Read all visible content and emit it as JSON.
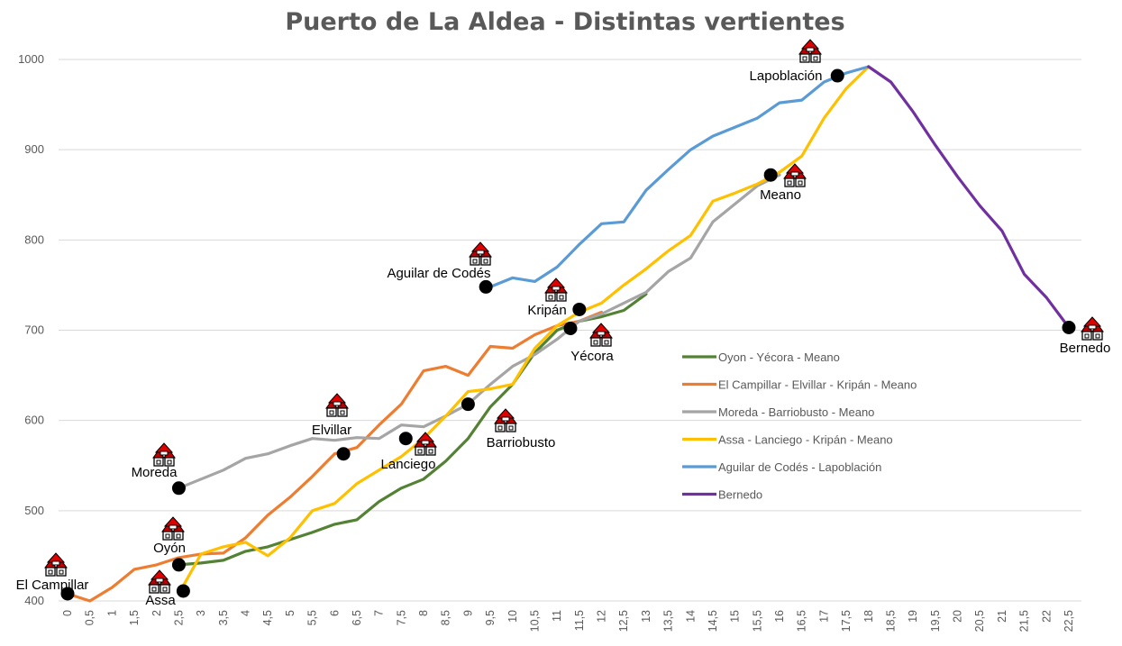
{
  "chart_data": {
    "type": "line",
    "title": "Puerto de La Aldea - Distintas vertientes",
    "xlabel": "",
    "ylabel": "",
    "xlim": [
      0,
      22.5
    ],
    "ylim": [
      400,
      1000
    ],
    "y_ticks": [
      "400",
      "500",
      "600",
      "700",
      "800",
      "900",
      "1000"
    ],
    "x_ticks": [
      "0",
      "0,5",
      "1",
      "1,5",
      "2",
      "2,5",
      "3",
      "3,5",
      "4",
      "4,5",
      "5",
      "5,5",
      "6",
      "6,5",
      "7",
      "7,5",
      "8",
      "8,5",
      "9",
      "9,5",
      "10",
      "10,5",
      "11",
      "11,5",
      "12",
      "12,5",
      "13",
      "13,5",
      "14",
      "14,5",
      "15",
      "15,5",
      "16",
      "16,5",
      "17",
      "17,5",
      "18",
      "18,5",
      "19",
      "19,5",
      "20",
      "20,5",
      "21",
      "21,5",
      "22",
      "22,5"
    ],
    "grid": "horizontal",
    "legend_position": "right",
    "series": [
      {
        "name": "Oyon - Yécora - Meano",
        "color": "#548235",
        "x": [
          2.5,
          3,
          3.5,
          4,
          4.5,
          5,
          5.5,
          6,
          6.5,
          7,
          7.5,
          8,
          8.5,
          9,
          9.5,
          10,
          10.5,
          11,
          11.5,
          12,
          12.5,
          13
        ],
        "y": [
          440,
          442,
          445,
          455,
          460,
          468,
          476,
          485,
          490,
          510,
          525,
          535,
          555,
          580,
          615,
          640,
          675,
          700,
          710,
          715,
          722,
          740
        ]
      },
      {
        "name": "El Campillar - Elvillar - Kripán - Meano",
        "color": "#ED7D31",
        "x": [
          0,
          0.5,
          1,
          1.5,
          2,
          2.5,
          3,
          3.5,
          4,
          4.5,
          5,
          5.5,
          6,
          6.5,
          7,
          7.5,
          8,
          8.5,
          9,
          9.5,
          10,
          10.5,
          11,
          11.5,
          12
        ],
        "y": [
          408,
          400,
          415,
          435,
          440,
          448,
          452,
          453,
          470,
          495,
          515,
          538,
          563,
          570,
          595,
          618,
          655,
          660,
          650,
          682,
          680,
          695,
          705,
          710,
          720
        ]
      },
      {
        "name": "Moreda - Barriobusto - Meano",
        "color": "#A5A5A5",
        "x": [
          2.5,
          3,
          3.5,
          4,
          4.5,
          5,
          5.5,
          6,
          6.5,
          7,
          7.5,
          8,
          8.5,
          9,
          9.5,
          10,
          10.5,
          11,
          11.5,
          12,
          12.5,
          13,
          13.5,
          14,
          14.5,
          15,
          15.5,
          16
        ],
        "y": [
          525,
          535,
          545,
          558,
          563,
          572,
          580,
          578,
          581,
          580,
          595,
          593,
          605,
          618,
          640,
          660,
          673,
          690,
          710,
          718,
          730,
          742,
          765,
          780,
          820,
          840,
          860,
          872
        ]
      },
      {
        "name": "Assa - Lanciego - Kripán - Meano",
        "color": "#FFC000",
        "x": [
          2.5,
          3,
          3.5,
          4,
          4.5,
          5,
          5.5,
          6,
          6.5,
          7,
          7.5,
          8,
          8.5,
          9,
          9.5,
          10,
          10.5,
          11,
          11.5,
          12,
          12.5,
          13,
          13.5,
          14,
          14.5,
          15,
          15.5,
          16,
          16.5,
          17,
          17.5,
          18
        ],
        "y": [
          408,
          452,
          460,
          465,
          450,
          470,
          500,
          508,
          530,
          545,
          560,
          580,
          605,
          632,
          635,
          640,
          680,
          705,
          720,
          730,
          750,
          768,
          788,
          805,
          843,
          852,
          862,
          875,
          893,
          935,
          968,
          992
        ]
      },
      {
        "name": "Aguilar de Codés - Lapoblación",
        "color": "#5B9BD5",
        "x": [
          9.5,
          10,
          10.5,
          11,
          11.5,
          12,
          12.5,
          13,
          13.5,
          14,
          14.5,
          15,
          15.5,
          16,
          16.5,
          17,
          17.5,
          18
        ],
        "y": [
          748,
          758,
          754,
          770,
          795,
          818,
          820,
          855,
          878,
          900,
          915,
          925,
          935,
          952,
          955,
          975,
          985,
          992
        ]
      },
      {
        "name": "Bernedo",
        "color": "#7030A0",
        "x": [
          18,
          18.5,
          19,
          19.5,
          20,
          20.5,
          21,
          21.5,
          22,
          22.5
        ],
        "y": [
          992,
          975,
          942,
          905,
          870,
          838,
          810,
          762,
          736,
          703
        ]
      }
    ],
    "annotations": [
      {
        "label": "El Campillar",
        "x": 0,
        "y": 408
      },
      {
        "label": "Oyón",
        "x": 2.5,
        "y": 440
      },
      {
        "label": "Assa",
        "x": 2.6,
        "y": 411
      },
      {
        "label": "Moreda",
        "x": 2.5,
        "y": 525
      },
      {
        "label": "Elvillar",
        "x": 6.2,
        "y": 563
      },
      {
        "label": "Lanciego",
        "x": 7.6,
        "y": 580
      },
      {
        "label": "Barriobusto",
        "x": 9,
        "y": 618
      },
      {
        "label": "Aguilar de Codés",
        "x": 9.4,
        "y": 748
      },
      {
        "label": "Kripán",
        "x": 11.5,
        "y": 723
      },
      {
        "label": "Yécora",
        "x": 11.3,
        "y": 702
      },
      {
        "label": "Meano",
        "x": 15.8,
        "y": 872
      },
      {
        "label": "Lapoblación",
        "x": 17.3,
        "y": 982
      },
      {
        "label": "Bernedo",
        "x": 22.5,
        "y": 703
      }
    ]
  }
}
